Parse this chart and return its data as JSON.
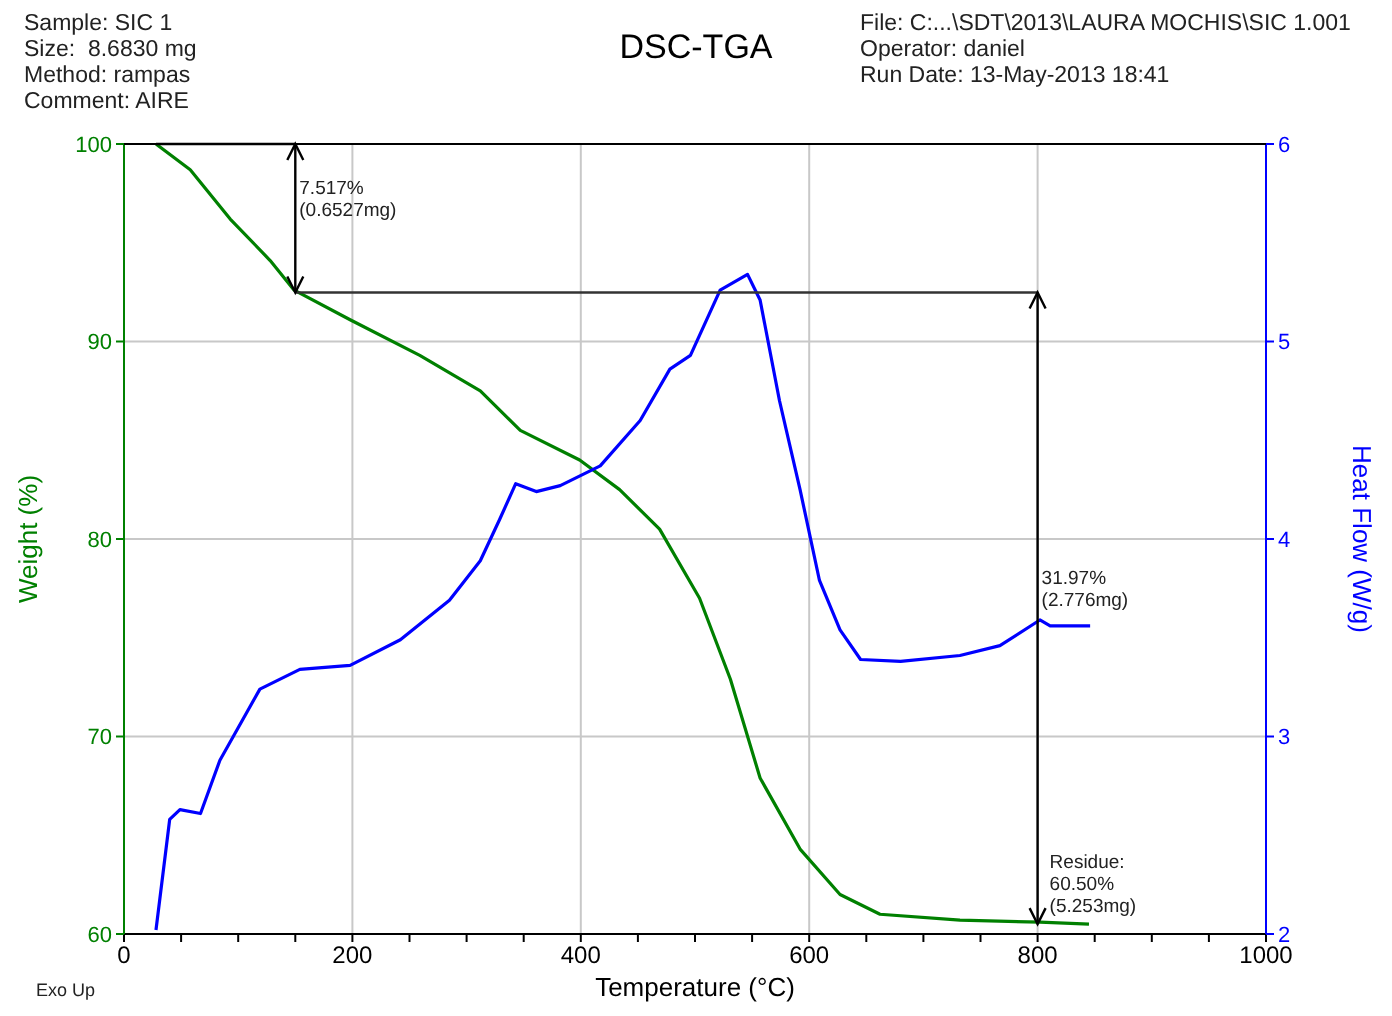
{
  "chart_data": {
    "type": "line",
    "title": "DSC-TGA",
    "xlabel": "Temperature (°C)",
    "ylabel": "Weight (%)",
    "y2label": "Heat Flow (W/g)",
    "xlim": [
      0,
      1000
    ],
    "xticks": [
      0,
      {
        "value": 50,
        "label": null
      },
      200,
      {
        "value": 100,
        "label": null
      },
      {
        "value": 150,
        "label": null
      },
      {
        "value": 250,
        "label": null
      },
      {
        "value": 300,
        "label": null
      },
      {
        "value": 350,
        "label": null
      },
      400,
      {
        "value": 450,
        "label": null
      },
      {
        "value": 500,
        "label": null
      },
      {
        "value": 550,
        "label": null
      },
      600,
      {
        "value": 650,
        "label": null
      },
      {
        "value": 700,
        "label": null
      },
      {
        "value": 750,
        "label": null
      },
      800,
      {
        "value": 850,
        "label": null
      },
      {
        "value": 900,
        "label": null
      },
      {
        "value": 950,
        "label": null
      },
      1000
    ],
    "ylim": [
      60,
      100
    ],
    "yticks": [
      60,
      70,
      80,
      90,
      100
    ],
    "y2lim": [
      2,
      6
    ],
    "y2ticks": [
      2,
      3,
      4,
      5,
      6
    ],
    "grid": true,
    "marker": "none",
    "line_style": "solid",
    "series": [
      {
        "color": "#008000",
        "x": [
          28,
          58,
          93,
          128,
          149,
          198,
          259,
          312,
          347,
          399,
          434,
          469,
          504,
          531,
          557,
          592,
          627,
          662,
          732,
          802,
          845
        ],
        "values": [
          100,
          98.7,
          96.2,
          94.1,
          92.6,
          91.1,
          89.3,
          87.5,
          85.5,
          84.0,
          82.5,
          80.5,
          77.0,
          72.9,
          67.9,
          64.3,
          62.0,
          61.0,
          60.7,
          60.6,
          60.5
        ]
      },
      {
        "color": "#0000ff",
        "axis": "y2",
        "x": [
          28,
          40,
          49,
          67,
          84,
          119,
          154,
          198,
          242,
          285,
          312,
          329,
          343,
          361,
          382,
          417,
          452,
          478,
          496,
          522,
          546,
          557,
          574,
          592,
          609,
          627,
          645,
          680,
          732,
          767,
          802,
          811,
          846
        ],
        "values": [
          2.02,
          2.58,
          2.63,
          2.61,
          2.88,
          3.24,
          3.34,
          3.36,
          3.49,
          3.69,
          3.89,
          4.1,
          4.28,
          4.24,
          4.27,
          4.37,
          4.6,
          4.86,
          4.93,
          5.26,
          5.34,
          5.21,
          4.7,
          4.25,
          3.79,
          3.54,
          3.39,
          3.38,
          3.41,
          3.46,
          3.59,
          3.56,
          3.56
        ]
      }
    ],
    "ref_lines": [
      {
        "axis": "y",
        "value": 100,
        "color": "#000000"
      },
      {
        "axis": "x",
        "value": 150,
        "color": "#000000"
      },
      {
        "axis": "y",
        "value": 92.48,
        "color": "#333333"
      },
      {
        "axis": "x",
        "value": 800,
        "color": "#000000"
      }
    ],
    "annotations": [
      "7.517%\n(0.6527mg)",
      "31.97%\n(2.776mg)",
      {
        "text": "Residue:\n60.50%\n(5.253mg)",
        "x": 800,
        "y": 60.5
      },
      "Sample: SIC 1\nSize:  8.6830 mg\nMethod: rampas\nComment: AIRE",
      "File: C:...\\SDT\\2013\\LAURA MOCHIS\\SIC 1.001\nOperator: daniel\nRun Date: 13-May-2013 18:41",
      "Exo Up"
    ]
  }
}
